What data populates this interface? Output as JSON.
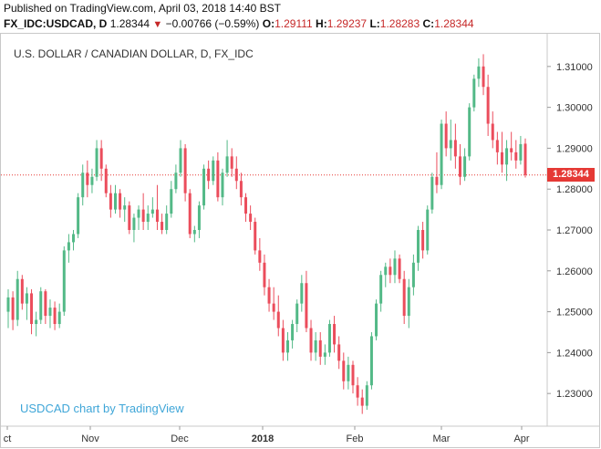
{
  "header": {
    "published": "Published on TradingView.com, April 03, 2018 14:40 BST",
    "symbol": "FX_IDC:USDCAD, D",
    "last": "1.28344",
    "arrow": "▼",
    "change": "−0.00766 (−0.59%)",
    "o_label": "O:",
    "o_value": "1.29111",
    "h_label": "H:",
    "h_value": "1.29237",
    "l_label": "L:",
    "l_value": "1.28283",
    "c_label": "C:",
    "c_value": "1.28344"
  },
  "chart_title": "U.S. DOLLAR / CANADIAN DOLLAR, D, FX_IDC",
  "watermark": "USDCAD chart by TradingView",
  "price_tag": "1.28344",
  "colors": {
    "up": "#53b987",
    "down": "#eb4d5c",
    "price_line": "#e53935",
    "axis_text": "#333333",
    "watermark": "#3fa6d8"
  },
  "chart_data": {
    "type": "candlestick",
    "title": "U.S. DOLLAR / CANADIAN DOLLAR, D, FX_IDC",
    "ylim": [
      1.222,
      1.318
    ],
    "yticks": [
      "1.31000",
      "1.30000",
      "1.29000",
      "1.28000",
      "1.27000",
      "1.26000",
      "1.25000",
      "1.24000",
      "1.23000"
    ],
    "xticks": [
      "ct",
      "Nov",
      "Dec",
      "2018",
      "Feb",
      "Mar",
      "Apr"
    ],
    "last_price": 1.28344,
    "candles": [
      [
        1.25,
        1.2555,
        1.246,
        1.2535
      ],
      [
        1.2535,
        1.255,
        1.2455,
        1.248
      ],
      [
        1.248,
        1.26,
        1.2465,
        1.258
      ],
      [
        1.258,
        1.259,
        1.2505,
        1.252
      ],
      [
        1.252,
        1.256,
        1.248,
        1.2545
      ],
      [
        1.2545,
        1.2555,
        1.2445,
        1.247
      ],
      [
        1.247,
        1.25,
        1.244,
        1.248
      ],
      [
        1.248,
        1.256,
        1.247,
        1.255
      ],
      [
        1.255,
        1.2555,
        1.247,
        1.249
      ],
      [
        1.249,
        1.253,
        1.246,
        1.251
      ],
      [
        1.251,
        1.2525,
        1.2455,
        1.247
      ],
      [
        1.247,
        1.252,
        1.246,
        1.25
      ],
      [
        1.25,
        1.266,
        1.249,
        1.265
      ],
      [
        1.265,
        1.269,
        1.262,
        1.267
      ],
      [
        1.267,
        1.27,
        1.265,
        1.269
      ],
      [
        1.269,
        1.279,
        1.268,
        1.278
      ],
      [
        1.278,
        1.286,
        1.276,
        1.284
      ],
      [
        1.284,
        1.287,
        1.278,
        1.281
      ],
      [
        1.281,
        1.285,
        1.279,
        1.283
      ],
      [
        1.283,
        1.292,
        1.282,
        1.29
      ],
      [
        1.29,
        1.292,
        1.282,
        1.285
      ],
      [
        1.285,
        1.286,
        1.278,
        1.279
      ],
      [
        1.279,
        1.281,
        1.273,
        1.275
      ],
      [
        1.275,
        1.281,
        1.274,
        1.279
      ],
      [
        1.279,
        1.28,
        1.273,
        1.275
      ],
      [
        1.275,
        1.278,
        1.272,
        1.276
      ],
      [
        1.276,
        1.277,
        1.269,
        1.27
      ],
      [
        1.27,
        1.274,
        1.267,
        1.273
      ],
      [
        1.273,
        1.276,
        1.27,
        1.275
      ],
      [
        1.275,
        1.279,
        1.27,
        1.272
      ],
      [
        1.272,
        1.276,
        1.27,
        1.274
      ],
      [
        1.274,
        1.278,
        1.273,
        1.275
      ],
      [
        1.275,
        1.281,
        1.27,
        1.272
      ],
      [
        1.272,
        1.274,
        1.269,
        1.27
      ],
      [
        1.27,
        1.276,
        1.269,
        1.274
      ],
      [
        1.274,
        1.282,
        1.273,
        1.28
      ],
      [
        1.28,
        1.286,
        1.279,
        1.284
      ],
      [
        1.284,
        1.292,
        1.283,
        1.29
      ],
      [
        1.29,
        1.291,
        1.277,
        1.279
      ],
      [
        1.279,
        1.28,
        1.268,
        1.269
      ],
      [
        1.269,
        1.271,
        1.267,
        1.27
      ],
      [
        1.27,
        1.277,
        1.268,
        1.276
      ],
      [
        1.276,
        1.286,
        1.275,
        1.285
      ],
      [
        1.285,
        1.287,
        1.28,
        1.282
      ],
      [
        1.282,
        1.288,
        1.281,
        1.287
      ],
      [
        1.287,
        1.289,
        1.277,
        1.278
      ],
      [
        1.278,
        1.285,
        1.276,
        1.284
      ],
      [
        1.284,
        1.292,
        1.283,
        1.288
      ],
      [
        1.288,
        1.29,
        1.283,
        1.285
      ],
      [
        1.285,
        1.288,
        1.28,
        1.282
      ],
      [
        1.282,
        1.284,
        1.276,
        1.278
      ],
      [
        1.278,
        1.279,
        1.272,
        1.274
      ],
      [
        1.274,
        1.276,
        1.27,
        1.272
      ],
      [
        1.272,
        1.273,
        1.264,
        1.265
      ],
      [
        1.265,
        1.268,
        1.26,
        1.262
      ],
      [
        1.262,
        1.264,
        1.254,
        1.256
      ],
      [
        1.256,
        1.258,
        1.25,
        1.252
      ],
      [
        1.252,
        1.256,
        1.248,
        1.25
      ],
      [
        1.25,
        1.254,
        1.244,
        1.246
      ],
      [
        1.246,
        1.248,
        1.238,
        1.24
      ],
      [
        1.24,
        1.245,
        1.238,
        1.243
      ],
      [
        1.243,
        1.248,
        1.241,
        1.247
      ],
      [
        1.247,
        1.253,
        1.245,
        1.252
      ],
      [
        1.252,
        1.259,
        1.25,
        1.257
      ],
      [
        1.257,
        1.26,
        1.245,
        1.246
      ],
      [
        1.246,
        1.248,
        1.238,
        1.24
      ],
      [
        1.24,
        1.245,
        1.238,
        1.243
      ],
      [
        1.243,
        1.245,
        1.237,
        1.239
      ],
      [
        1.239,
        1.242,
        1.237,
        1.24
      ],
      [
        1.24,
        1.248,
        1.239,
        1.247
      ],
      [
        1.247,
        1.249,
        1.24,
        1.242
      ],
      [
        1.242,
        1.244,
        1.236,
        1.238
      ],
      [
        1.238,
        1.24,
        1.231,
        1.233
      ],
      [
        1.233,
        1.239,
        1.231,
        1.237
      ],
      [
        1.237,
        1.238,
        1.23,
        1.232
      ],
      [
        1.232,
        1.234,
        1.227,
        1.229
      ],
      [
        1.229,
        1.231,
        1.225,
        1.227
      ],
      [
        1.227,
        1.233,
        1.226,
        1.232
      ],
      [
        1.232,
        1.245,
        1.231,
        1.244
      ],
      [
        1.244,
        1.253,
        1.243,
        1.252
      ],
      [
        1.252,
        1.26,
        1.25,
        1.259
      ],
      [
        1.259,
        1.262,
        1.256,
        1.261
      ],
      [
        1.261,
        1.263,
        1.257,
        1.259
      ],
      [
        1.259,
        1.265,
        1.257,
        1.263
      ],
      [
        1.263,
        1.264,
        1.257,
        1.258
      ],
      [
        1.258,
        1.26,
        1.247,
        1.249
      ],
      [
        1.249,
        1.258,
        1.246,
        1.256
      ],
      [
        1.256,
        1.264,
        1.254,
        1.262
      ],
      [
        1.262,
        1.271,
        1.26,
        1.27
      ],
      [
        1.27,
        1.272,
        1.263,
        1.265
      ],
      [
        1.265,
        1.276,
        1.264,
        1.275
      ],
      [
        1.275,
        1.284,
        1.274,
        1.283
      ],
      [
        1.283,
        1.289,
        1.279,
        1.281
      ],
      [
        1.281,
        1.297,
        1.28,
        1.296
      ],
      [
        1.296,
        1.299,
        1.288,
        1.29
      ],
      [
        1.29,
        1.297,
        1.287,
        1.292
      ],
      [
        1.292,
        1.296,
        1.285,
        1.288
      ],
      [
        1.288,
        1.291,
        1.281,
        1.283
      ],
      [
        1.283,
        1.29,
        1.282,
        1.288
      ],
      [
        1.288,
        1.301,
        1.287,
        1.3
      ],
      [
        1.3,
        1.308,
        1.299,
        1.307
      ],
      [
        1.307,
        1.312,
        1.305,
        1.31
      ],
      [
        1.31,
        1.313,
        1.303,
        1.305
      ],
      [
        1.305,
        1.308,
        1.293,
        1.296
      ],
      [
        1.296,
        1.299,
        1.29,
        1.292
      ],
      [
        1.292,
        1.294,
        1.286,
        1.289
      ],
      [
        1.289,
        1.294,
        1.284,
        1.286
      ],
      [
        1.286,
        1.292,
        1.282,
        1.29
      ],
      [
        1.29,
        1.294,
        1.287,
        1.289
      ],
      [
        1.289,
        1.292,
        1.285,
        1.287
      ],
      [
        1.287,
        1.293,
        1.286,
        1.291
      ],
      [
        1.29111,
        1.29237,
        1.28283,
        1.28344
      ]
    ]
  }
}
